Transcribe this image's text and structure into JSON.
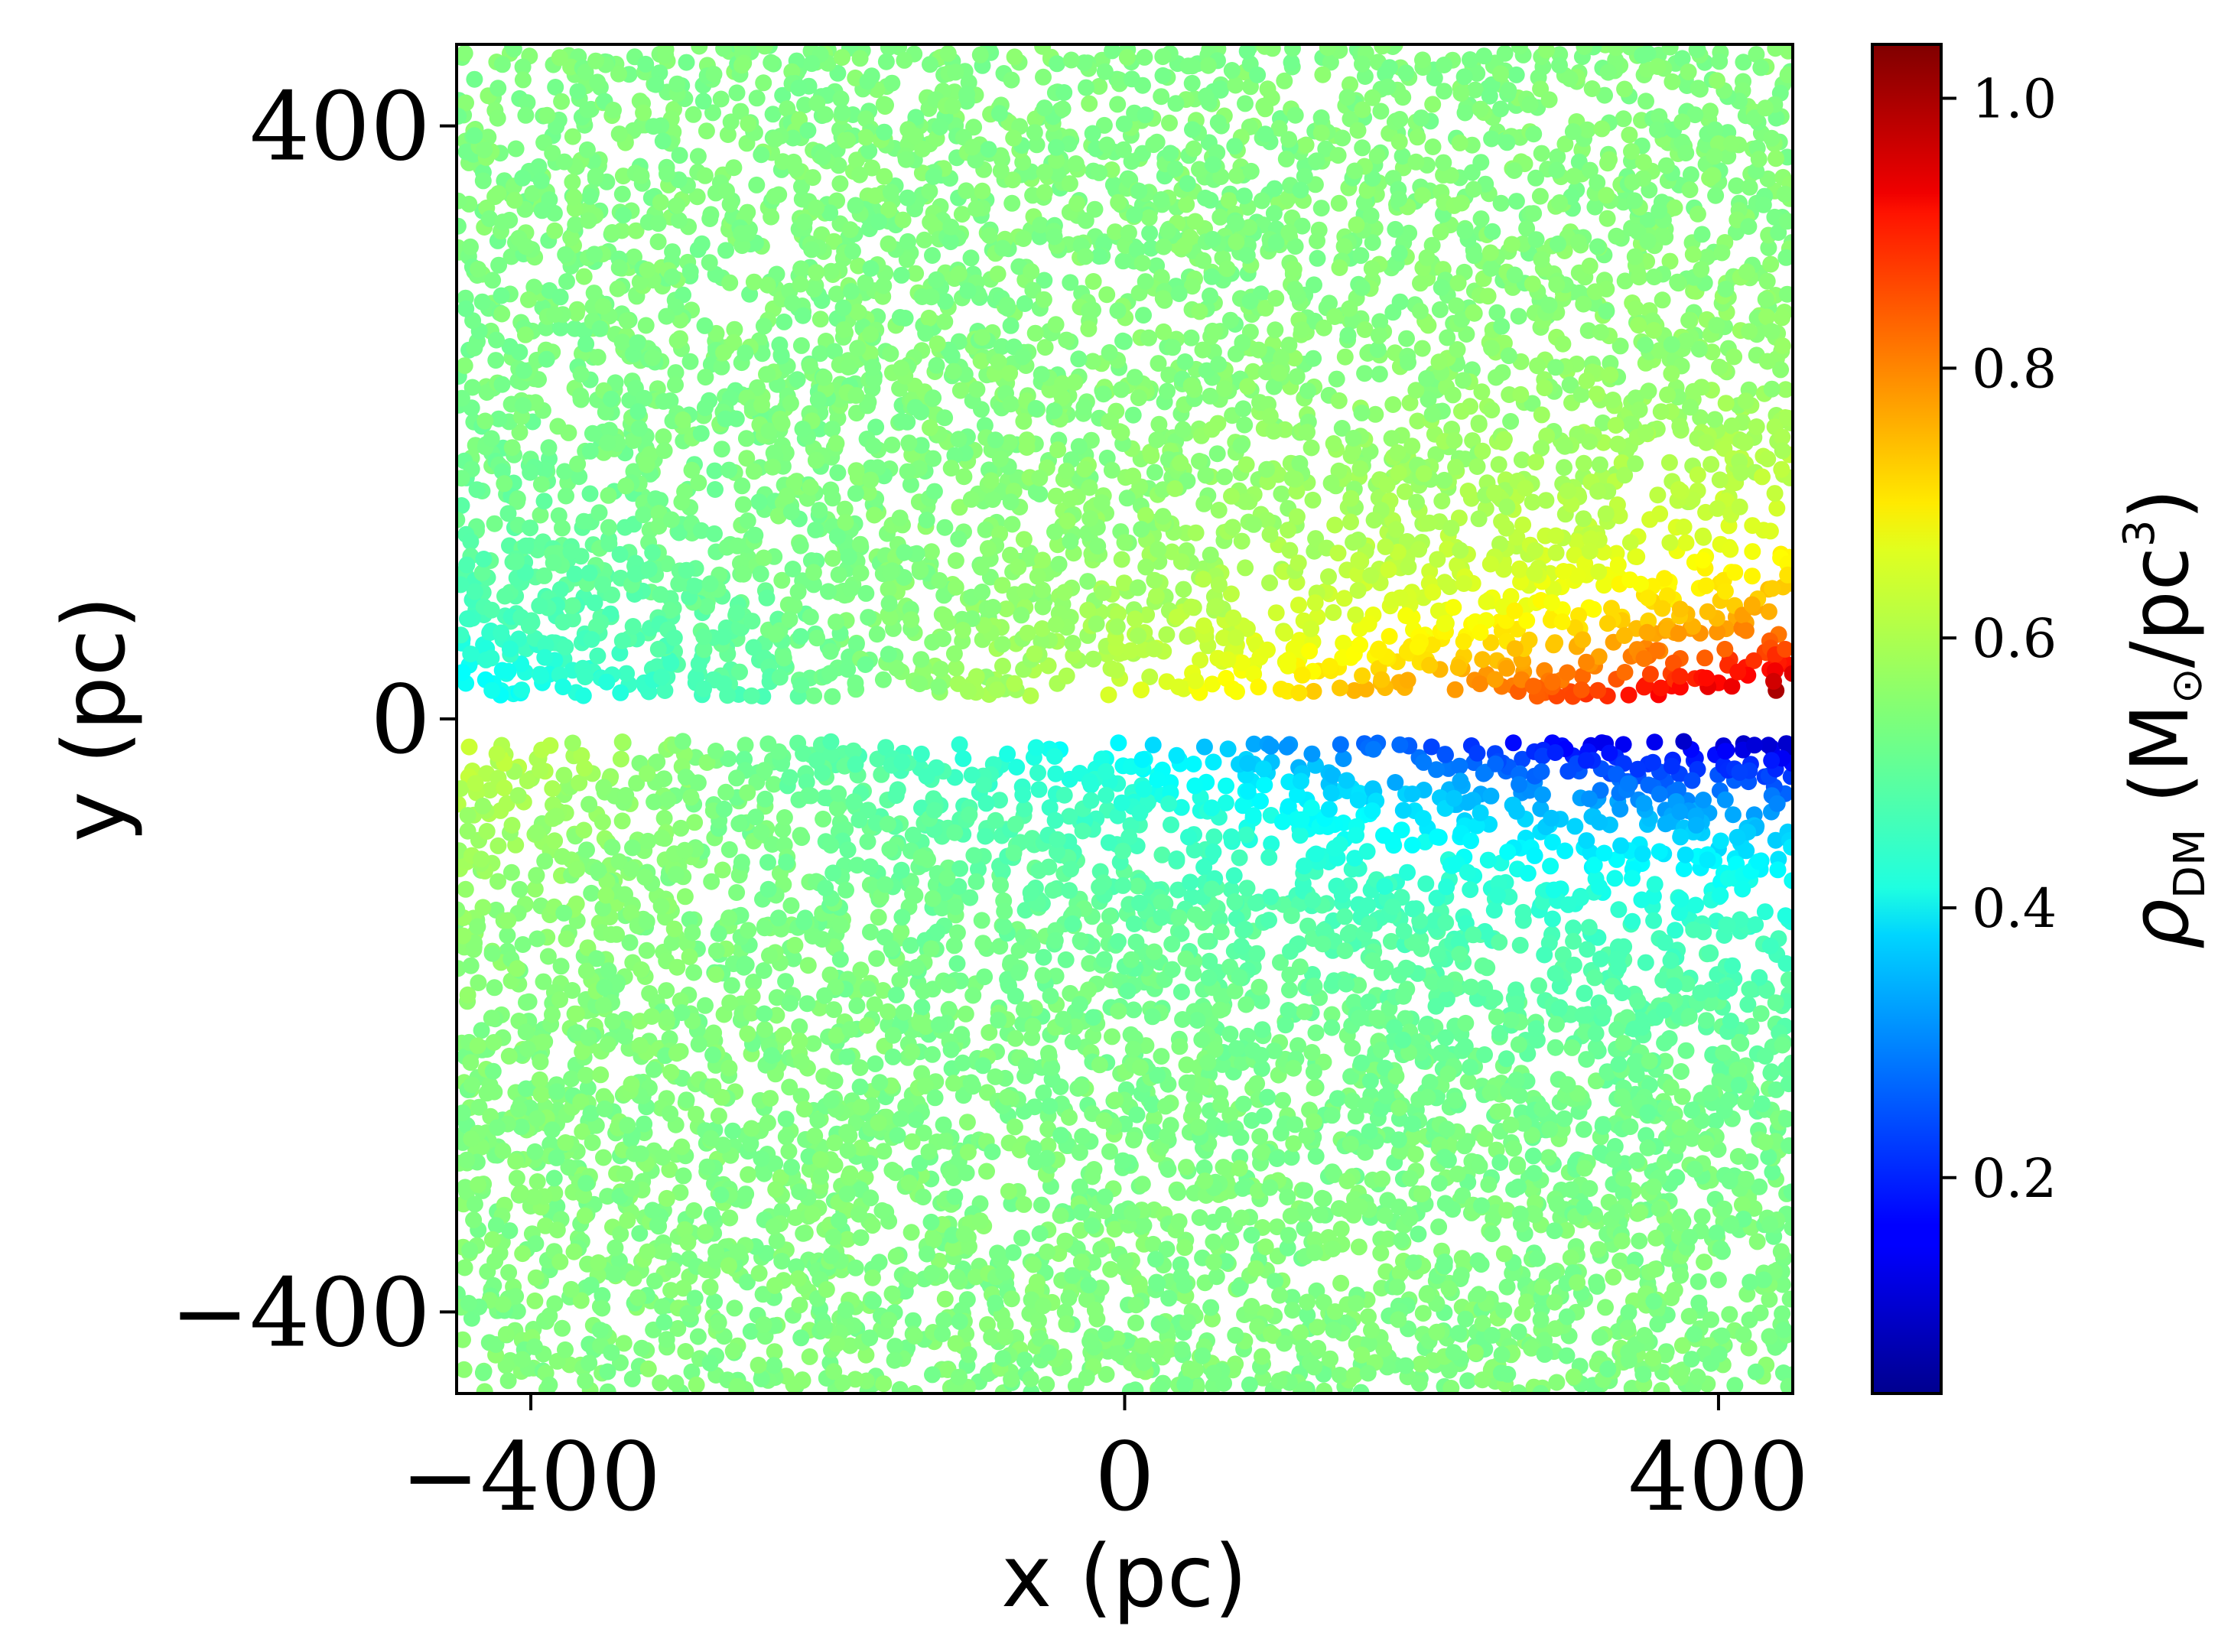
{
  "chart_data": {
    "type": "scatter",
    "title": "",
    "xlabel": "x (pc)",
    "ylabel": "y (pc)",
    "xlim": [
      -450,
      450
    ],
    "ylim": [
      -455,
      455
    ],
    "x_ticks": [
      -400,
      0,
      400
    ],
    "x_tick_labels": [
      "−400",
      "0",
      "400"
    ],
    "y_ticks": [
      -400,
      0,
      400
    ],
    "y_tick_labels": [
      "−400",
      "0",
      "400"
    ],
    "grid": false,
    "colormap": "jet",
    "colorbar": {
      "label_parts": {
        "rho": "ρ",
        "sub": "DM",
        "open": " (M",
        "sun": "⊙",
        "mid": "/pc",
        "sup": "3",
        "close": ")"
      },
      "range": [
        0.04,
        1.04
      ],
      "ticks": [
        0.2,
        0.4,
        0.6,
        0.8,
        1.0
      ],
      "tick_labels": [
        "0.2",
        "0.4",
        "0.6",
        "0.8",
        "1.0"
      ]
    },
    "gap_band_y": [
      -15,
      15
    ],
    "density_trend": {
      "description_values": "rho_DM at y>0 rises from ~0.40 (x=-450) to ~1.04 (x=450) near the gap; at y<0 it falls from ~0.62 (x=-450) to ~0.10 (x=450) near the gap; far from the gap rho relaxes to ~0.52-0.56",
      "upper_near_gap": [
        [
          -450,
          0.4
        ],
        [
          0,
          0.62
        ],
        [
          300,
          0.85
        ],
        [
          450,
          1.04
        ]
      ],
      "lower_near_gap": [
        [
          -450,
          0.62
        ],
        [
          0,
          0.4
        ],
        [
          300,
          0.15
        ],
        [
          450,
          0.1
        ]
      ],
      "far_field": 0.54
    },
    "point_count_estimate": 9000
  }
}
